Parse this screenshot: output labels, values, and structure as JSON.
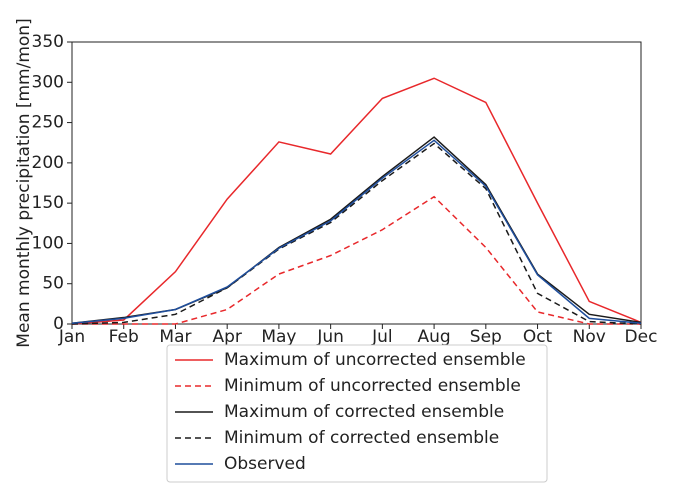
{
  "chart_data": {
    "type": "line",
    "ylabel": "Mean monthly precipitation [mm/mon]",
    "categories": [
      "Jan",
      "Feb",
      "Mar",
      "Apr",
      "May",
      "Jun",
      "Jul",
      "Aug",
      "Sep",
      "Oct",
      "Nov",
      "Dec"
    ],
    "ylim": [
      0,
      350
    ],
    "yticks": [
      0,
      50,
      100,
      150,
      200,
      250,
      300,
      350
    ],
    "legend": "below",
    "series": [
      {
        "name": "Maximum of uncorrected ensemble",
        "color": "#e8282b",
        "style": "solid",
        "values": [
          0,
          5,
          65,
          155,
          226,
          211,
          280,
          305,
          275,
          150,
          28,
          2
        ]
      },
      {
        "name": "Minimum of uncorrected ensemble",
        "color": "#e8282b",
        "style": "dashed",
        "values": [
          0,
          0,
          0,
          18,
          62,
          85,
          117,
          158,
          95,
          15,
          0,
          0
        ]
      },
      {
        "name": "Maximum of corrected ensemble",
        "color": "#1a1a1a",
        "style": "solid",
        "values": [
          1,
          8,
          18,
          45,
          95,
          130,
          183,
          232,
          173,
          62,
          12,
          2
        ]
      },
      {
        "name": "Minimum of corrected ensemble",
        "color": "#1a1a1a",
        "style": "dashed",
        "values": [
          0,
          2,
          12,
          45,
          93,
          126,
          178,
          224,
          168,
          38,
          3,
          0
        ]
      },
      {
        "name": "Observed",
        "color": "#1f4e9c",
        "style": "solid",
        "values": [
          1,
          7,
          18,
          46,
          94,
          128,
          181,
          228,
          171,
          61,
          7,
          1
        ]
      }
    ]
  }
}
